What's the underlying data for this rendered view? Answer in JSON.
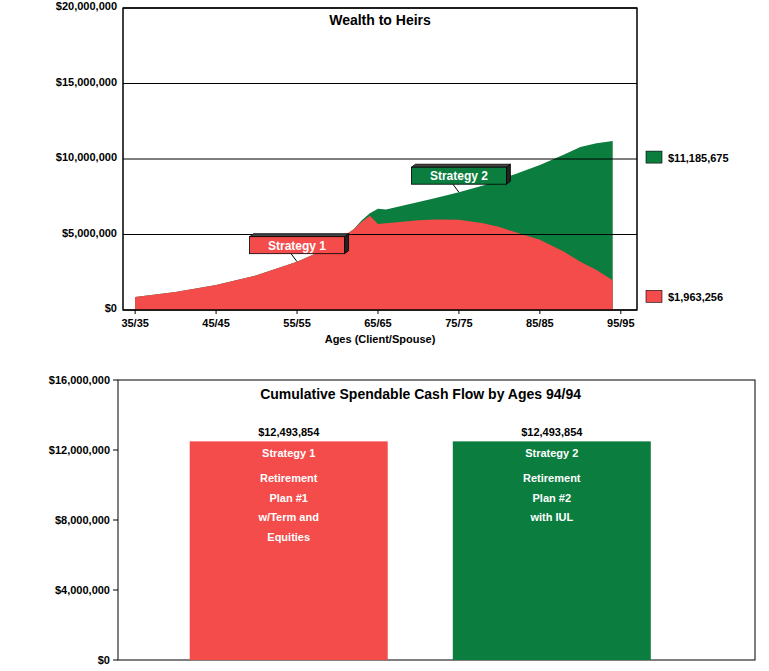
{
  "chart_data": [
    {
      "type": "area",
      "title": "Wealth to Heirs",
      "x_label": "Ages (Client/Spouse)",
      "x": [
        35,
        40,
        45,
        50,
        55,
        58,
        60,
        62,
        63,
        64,
        65,
        66,
        68,
        70,
        72,
        75,
        78,
        80,
        82,
        85,
        88,
        90,
        92,
        94
      ],
      "series": [
        {
          "name": "Strategy 1",
          "color": "#f44b4b",
          "values": [
            860000,
            1200000,
            1660000,
            2300000,
            3200000,
            3900000,
            4600000,
            5350000,
            5850000,
            6250000,
            5700000,
            5750000,
            5850000,
            5950000,
            6000000,
            5980000,
            5750000,
            5500000,
            5150000,
            4650000,
            3850000,
            3200000,
            2650000,
            1963256
          ],
          "value_labels": [
            null,
            null,
            null,
            null,
            null,
            null,
            null,
            null,
            null,
            null,
            null,
            null,
            null,
            null,
            null,
            null,
            null,
            null,
            null,
            null,
            null,
            null,
            null,
            "$1,963,256"
          ]
        },
        {
          "name": "Strategy 2",
          "color": "#0b7d3e",
          "values": [
            860000,
            1200000,
            1660000,
            2300000,
            3200000,
            3900000,
            4600000,
            5350000,
            5950000,
            6400000,
            6700000,
            6650000,
            6900000,
            7150000,
            7400000,
            7800000,
            8250000,
            8650000,
            9000000,
            9600000,
            10300000,
            10800000,
            11050000,
            11185675
          ],
          "value_labels": [
            null,
            null,
            null,
            null,
            null,
            null,
            null,
            null,
            null,
            null,
            null,
            null,
            null,
            null,
            null,
            null,
            null,
            null,
            null,
            null,
            null,
            null,
            null,
            "$11,185,675"
          ]
        }
      ],
      "xlim": [
        33.5,
        97
      ],
      "xticks": [
        {
          "value": 35,
          "label": "35/35"
        },
        {
          "value": 45,
          "label": "45/45"
        },
        {
          "value": 55,
          "label": "55/55"
        },
        {
          "value": 65,
          "label": "65/65"
        },
        {
          "value": 75,
          "label": "75/75"
        },
        {
          "value": 85,
          "label": "85/85"
        },
        {
          "value": 95,
          "label": "95/95"
        }
      ],
      "ylim": [
        0,
        20000000
      ],
      "yticks": [
        {
          "value": 0,
          "label": "$0"
        },
        {
          "value": 5000000,
          "label": "$5,000,000"
        },
        {
          "value": 10000000,
          "label": "$10,000,000"
        },
        {
          "value": 15000000,
          "label": "$15,000,000"
        },
        {
          "value": 20000000,
          "label": "$20,000,000"
        }
      ],
      "grid": true,
      "stacked": false,
      "data_labels": true
    },
    {
      "type": "bar",
      "title": "Cumulative Spendable Cash Flow by Ages 94/94",
      "categories": [
        "Strategy 1",
        "Strategy 2"
      ],
      "descriptions": [
        [
          "Retirement",
          "Plan #1",
          "w/Term and",
          "Equities"
        ],
        [
          "Retirement",
          "Plan #2",
          "with IUL"
        ]
      ],
      "values": [
        12493854,
        12493854
      ],
      "value_labels": [
        "$12,493,854",
        "$12,493,854"
      ],
      "colors": [
        "#f44b4b",
        "#0b7d3e"
      ],
      "ylim": [
        0,
        16000000
      ],
      "yticks": [
        {
          "value": 0,
          "label": "$0"
        },
        {
          "value": 4000000,
          "label": "$4,000,000"
        },
        {
          "value": 8000000,
          "label": "$8,000,000"
        },
        {
          "value": 12000000,
          "label": "$12,000,000"
        },
        {
          "value": 16000000,
          "label": "$16,000,000"
        }
      ],
      "grid": false,
      "data_labels": true,
      "tick_labels": "y"
    }
  ]
}
